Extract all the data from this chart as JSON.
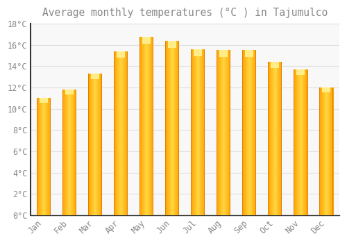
{
  "title": "Average monthly temperatures (°C ) in Tajumulco",
  "months": [
    "Jan",
    "Feb",
    "Mar",
    "Apr",
    "May",
    "Jun",
    "Jul",
    "Aug",
    "Sep",
    "Oct",
    "Nov",
    "Dec"
  ],
  "values": [
    11.0,
    11.8,
    13.3,
    15.4,
    16.8,
    16.4,
    15.6,
    15.5,
    15.5,
    14.4,
    13.7,
    12.0
  ],
  "bar_color_center": "#FFD740",
  "bar_color_edge": "#FFA000",
  "background_color": "#FFFFFF",
  "plot_bg_color": "#F8F8F8",
  "grid_color": "#E0E0E0",
  "text_color": "#888888",
  "spine_color": "#333333",
  "ylim": [
    0,
    18
  ],
  "ytick_step": 2,
  "title_fontsize": 10.5,
  "tick_fontsize": 8.5,
  "bar_width": 0.55
}
